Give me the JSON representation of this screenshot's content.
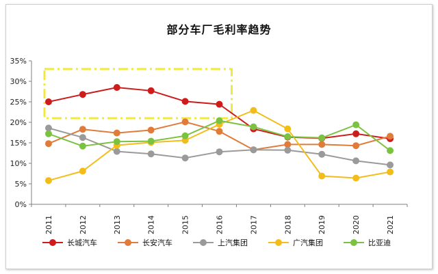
{
  "chart_data": {
    "type": "line",
    "title": "部分车厂毛利率趋势",
    "xlabel": "",
    "ylabel": "",
    "categories": [
      "2011",
      "2012",
      "2013",
      "2014",
      "2015",
      "2016",
      "2017",
      "2018",
      "2019",
      "2020",
      "2021"
    ],
    "ylim": [
      0,
      35
    ],
    "yticks": [
      "0%",
      "5%",
      "10%",
      "15%",
      "20%",
      "25%",
      "30%",
      "35%"
    ],
    "grid": false,
    "legend_position": "bottom",
    "highlight_box": {
      "x_from": "2011",
      "x_to": "2016",
      "y_from": 21,
      "y_to": 33,
      "color": "#f2e93a"
    },
    "series": [
      {
        "name": "长城汽车",
        "color": "#cc1c1c",
        "values": [
          25.0,
          26.8,
          28.5,
          27.7,
          25.1,
          24.4,
          18.4,
          16.4,
          16.1,
          17.2,
          16.0
        ]
      },
      {
        "name": "长安汽车",
        "color": "#e07b3a",
        "values": [
          14.8,
          18.3,
          17.4,
          18.1,
          20.1,
          17.8,
          13.3,
          14.6,
          14.6,
          14.3,
          16.6
        ]
      },
      {
        "name": "上汽集团",
        "color": "#9a9a9a",
        "values": [
          18.6,
          16.3,
          12.9,
          12.3,
          11.3,
          12.8,
          13.3,
          13.2,
          12.2,
          10.6,
          9.6
        ]
      },
      {
        "name": "广汽集团",
        "color": "#f2bd1a",
        "values": [
          5.8,
          8.1,
          14.4,
          15.1,
          15.6,
          19.5,
          22.9,
          18.4,
          6.9,
          6.4,
          7.9
        ]
      },
      {
        "name": "比亚迪",
        "color": "#7cc242",
        "values": [
          17.2,
          14.2,
          15.3,
          15.4,
          16.7,
          20.4,
          18.9,
          16.5,
          16.2,
          19.4,
          13.1
        ]
      }
    ]
  }
}
